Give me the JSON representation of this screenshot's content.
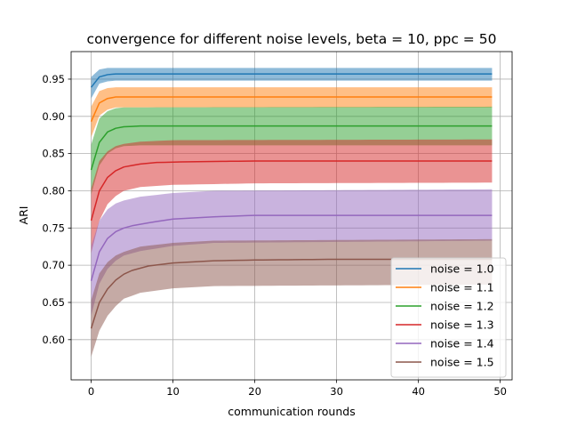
{
  "chart_data": {
    "type": "line",
    "title": "convergence for different noise levels, beta = 10, ppc = 50",
    "xlabel": "communication rounds",
    "ylabel": "ARI",
    "xlim": [
      -2.45,
      51.45
    ],
    "ylim": [
      0.546,
      0.987
    ],
    "xticks": [
      0,
      10,
      20,
      30,
      40,
      50
    ],
    "yticks": [
      0.6,
      0.65,
      0.7,
      0.75,
      0.8,
      0.85,
      0.9,
      0.95
    ],
    "grid": true,
    "legend_position": "lower right",
    "band": "shaded range around each line",
    "x": [
      0,
      1,
      2,
      3,
      4,
      5,
      6,
      7,
      8,
      9,
      10,
      11,
      12,
      13,
      14,
      15,
      16,
      17,
      18,
      19,
      20,
      21,
      22,
      23,
      24,
      25,
      26,
      27,
      28,
      29,
      30,
      31,
      32,
      33,
      34,
      35,
      36,
      37,
      38,
      39,
      40,
      41,
      42,
      43,
      44,
      45,
      46,
      47,
      48,
      49
    ],
    "series": [
      {
        "name": "noise = 1.0",
        "color": "#1f77b4",
        "knots": [
          [
            0,
            0.939
          ],
          [
            1,
            0.953
          ],
          [
            2,
            0.956
          ],
          [
            3,
            0.957
          ],
          [
            49,
            0.957
          ]
        ],
        "upper_knots": [
          [
            0,
            0.953
          ],
          [
            1,
            0.963
          ],
          [
            2,
            0.965
          ],
          [
            49,
            0.965
          ]
        ],
        "lower_knots": [
          [
            0,
            0.924
          ],
          [
            1,
            0.944
          ],
          [
            2,
            0.947
          ],
          [
            3,
            0.948
          ],
          [
            49,
            0.948
          ]
        ]
      },
      {
        "name": "noise = 1.1",
        "color": "#ff7f0e",
        "knots": [
          [
            0,
            0.893
          ],
          [
            1,
            0.918
          ],
          [
            2,
            0.924
          ],
          [
            3,
            0.926
          ],
          [
            49,
            0.926
          ]
        ],
        "upper_knots": [
          [
            0,
            0.913
          ],
          [
            1,
            0.934
          ],
          [
            2,
            0.938
          ],
          [
            3,
            0.939
          ],
          [
            49,
            0.939
          ]
        ],
        "lower_knots": [
          [
            0,
            0.872
          ],
          [
            1,
            0.901
          ],
          [
            2,
            0.909
          ],
          [
            3,
            0.912
          ],
          [
            49,
            0.912
          ]
        ]
      },
      {
        "name": "noise = 1.2",
        "color": "#2ca02c",
        "knots": [
          [
            0,
            0.828
          ],
          [
            1,
            0.865
          ],
          [
            2,
            0.879
          ],
          [
            3,
            0.884
          ],
          [
            4,
            0.886
          ],
          [
            6,
            0.887
          ],
          [
            49,
            0.887
          ]
        ],
        "upper_knots": [
          [
            0,
            0.862
          ],
          [
            1,
            0.897
          ],
          [
            2,
            0.907
          ],
          [
            3,
            0.911
          ],
          [
            4,
            0.912
          ],
          [
            49,
            0.913
          ]
        ],
        "lower_knots": [
          [
            0,
            0.795
          ],
          [
            1,
            0.834
          ],
          [
            2,
            0.85
          ],
          [
            3,
            0.857
          ],
          [
            4,
            0.86
          ],
          [
            6,
            0.861
          ],
          [
            49,
            0.861
          ]
        ]
      },
      {
        "name": "noise = 1.3",
        "color": "#d62728",
        "knots": [
          [
            0,
            0.76
          ],
          [
            1,
            0.8
          ],
          [
            2,
            0.818
          ],
          [
            3,
            0.827
          ],
          [
            4,
            0.832
          ],
          [
            6,
            0.836
          ],
          [
            8,
            0.838
          ],
          [
            12,
            0.839
          ],
          [
            20,
            0.84
          ],
          [
            49,
            0.84
          ]
        ],
        "upper_knots": [
          [
            0,
            0.803
          ],
          [
            1,
            0.84
          ],
          [
            2,
            0.853
          ],
          [
            3,
            0.86
          ],
          [
            4,
            0.863
          ],
          [
            6,
            0.866
          ],
          [
            10,
            0.868
          ],
          [
            49,
            0.869
          ]
        ],
        "lower_knots": [
          [
            0,
            0.716
          ],
          [
            1,
            0.76
          ],
          [
            2,
            0.782
          ],
          [
            3,
            0.793
          ],
          [
            4,
            0.8
          ],
          [
            6,
            0.805
          ],
          [
            10,
            0.808
          ],
          [
            20,
            0.81
          ],
          [
            49,
            0.811
          ]
        ]
      },
      {
        "name": "noise = 1.4",
        "color": "#9467bd",
        "knots": [
          [
            0,
            0.679
          ],
          [
            1,
            0.718
          ],
          [
            2,
            0.736
          ],
          [
            3,
            0.745
          ],
          [
            4,
            0.75
          ],
          [
            5,
            0.753
          ],
          [
            7,
            0.757
          ],
          [
            10,
            0.762
          ],
          [
            15,
            0.765
          ],
          [
            20,
            0.767
          ],
          [
            49,
            0.767
          ]
        ],
        "upper_knots": [
          [
            0,
            0.726
          ],
          [
            1,
            0.76
          ],
          [
            2,
            0.775
          ],
          [
            3,
            0.783
          ],
          [
            4,
            0.787
          ],
          [
            6,
            0.792
          ],
          [
            10,
            0.797
          ],
          [
            15,
            0.8
          ],
          [
            49,
            0.802
          ]
        ],
        "lower_knots": [
          [
            0,
            0.632
          ],
          [
            1,
            0.675
          ],
          [
            2,
            0.695
          ],
          [
            3,
            0.706
          ],
          [
            4,
            0.713
          ],
          [
            6,
            0.719
          ],
          [
            10,
            0.726
          ],
          [
            15,
            0.73
          ],
          [
            49,
            0.733
          ]
        ]
      },
      {
        "name": "noise = 1.5",
        "color": "#8c564b",
        "knots": [
          [
            0,
            0.615
          ],
          [
            1,
            0.65
          ],
          [
            2,
            0.668
          ],
          [
            3,
            0.68
          ],
          [
            4,
            0.688
          ],
          [
            5,
            0.693
          ],
          [
            7,
            0.699
          ],
          [
            10,
            0.703
          ],
          [
            15,
            0.706
          ],
          [
            20,
            0.707
          ],
          [
            30,
            0.708
          ],
          [
            49,
            0.708
          ]
        ],
        "upper_knots": [
          [
            0,
            0.653
          ],
          [
            1,
            0.689
          ],
          [
            2,
            0.704
          ],
          [
            3,
            0.713
          ],
          [
            4,
            0.718
          ],
          [
            6,
            0.725
          ],
          [
            10,
            0.73
          ],
          [
            15,
            0.733
          ],
          [
            49,
            0.735
          ]
        ],
        "lower_knots": [
          [
            0,
            0.577
          ],
          [
            1,
            0.612
          ],
          [
            2,
            0.632
          ],
          [
            3,
            0.645
          ],
          [
            4,
            0.655
          ],
          [
            6,
            0.663
          ],
          [
            10,
            0.669
          ],
          [
            15,
            0.672
          ],
          [
            49,
            0.674
          ]
        ]
      }
    ]
  }
}
